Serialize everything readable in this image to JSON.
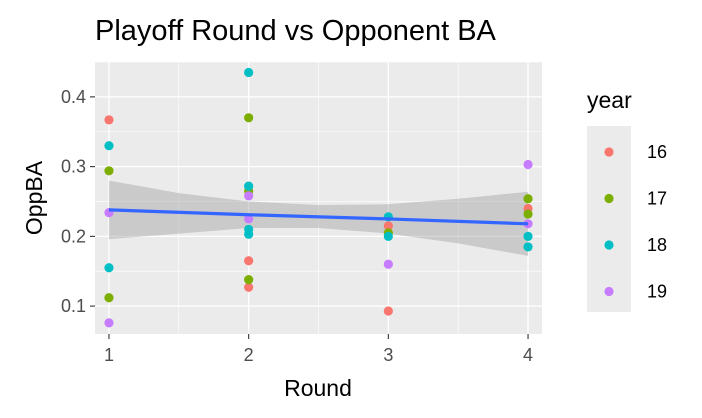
{
  "chart_data": {
    "type": "scatter",
    "title": "Playoff Round vs Opponent BA",
    "xlabel": "Round",
    "ylabel": "OppBA",
    "xlim": [
      0.9,
      4.1
    ],
    "ylim": [
      0.06,
      0.45
    ],
    "x_ticks": [
      1,
      2,
      3,
      4
    ],
    "x_tick_labels": [
      "1",
      "2",
      "3",
      "4"
    ],
    "y_ticks": [
      0.1,
      0.2,
      0.3,
      0.4
    ],
    "y_tick_labels": [
      "0.1",
      "0.2",
      "0.3",
      "0.4"
    ],
    "grid": true,
    "legend": {
      "title": "year",
      "position": "right"
    },
    "series": [
      {
        "name": "16",
        "color": "#F8766D",
        "points": [
          [
            1,
            0.367
          ],
          [
            2,
            0.165
          ],
          [
            2,
            0.127
          ],
          [
            3,
            0.215
          ],
          [
            3,
            0.093
          ],
          [
            4,
            0.24
          ]
        ]
      },
      {
        "name": "17",
        "color": "#7CAE00",
        "points": [
          [
            1,
            0.294
          ],
          [
            1,
            0.112
          ],
          [
            2,
            0.37
          ],
          [
            2,
            0.265
          ],
          [
            2,
            0.138
          ],
          [
            3,
            0.205
          ],
          [
            4,
            0.254
          ],
          [
            4,
            0.232
          ]
        ]
      },
      {
        "name": "18",
        "color": "#00BFC4",
        "points": [
          [
            1,
            0.33
          ],
          [
            1,
            0.155
          ],
          [
            2,
            0.435
          ],
          [
            2,
            0.272
          ],
          [
            2,
            0.21
          ],
          [
            2,
            0.203
          ],
          [
            3,
            0.228
          ],
          [
            3,
            0.2
          ],
          [
            4,
            0.2
          ],
          [
            4,
            0.185
          ]
        ]
      },
      {
        "name": "19",
        "color": "#C77CFF",
        "points": [
          [
            1,
            0.234
          ],
          [
            1,
            0.076
          ],
          [
            2,
            0.258
          ],
          [
            2,
            0.225
          ],
          [
            3,
            0.16
          ],
          [
            4,
            0.303
          ],
          [
            4,
            0.218
          ]
        ]
      }
    ],
    "trend": {
      "type": "lm",
      "color": "#3366FF",
      "band_color": "#999999",
      "points": [
        [
          1,
          0.238
        ],
        [
          2,
          0.231
        ],
        [
          3,
          0.225
        ],
        [
          4,
          0.218
        ]
      ],
      "band_lower": [
        [
          1,
          0.196
        ],
        [
          1.5,
          0.204
        ],
        [
          2,
          0.212
        ],
        [
          2.5,
          0.212
        ],
        [
          3,
          0.204
        ],
        [
          3.5,
          0.19
        ],
        [
          4,
          0.172
        ]
      ],
      "band_upper": [
        [
          1,
          0.28
        ],
        [
          1.5,
          0.262
        ],
        [
          2,
          0.25
        ],
        [
          2.5,
          0.245
        ],
        [
          3,
          0.246
        ],
        [
          3.5,
          0.254
        ],
        [
          4,
          0.264
        ]
      ]
    }
  }
}
